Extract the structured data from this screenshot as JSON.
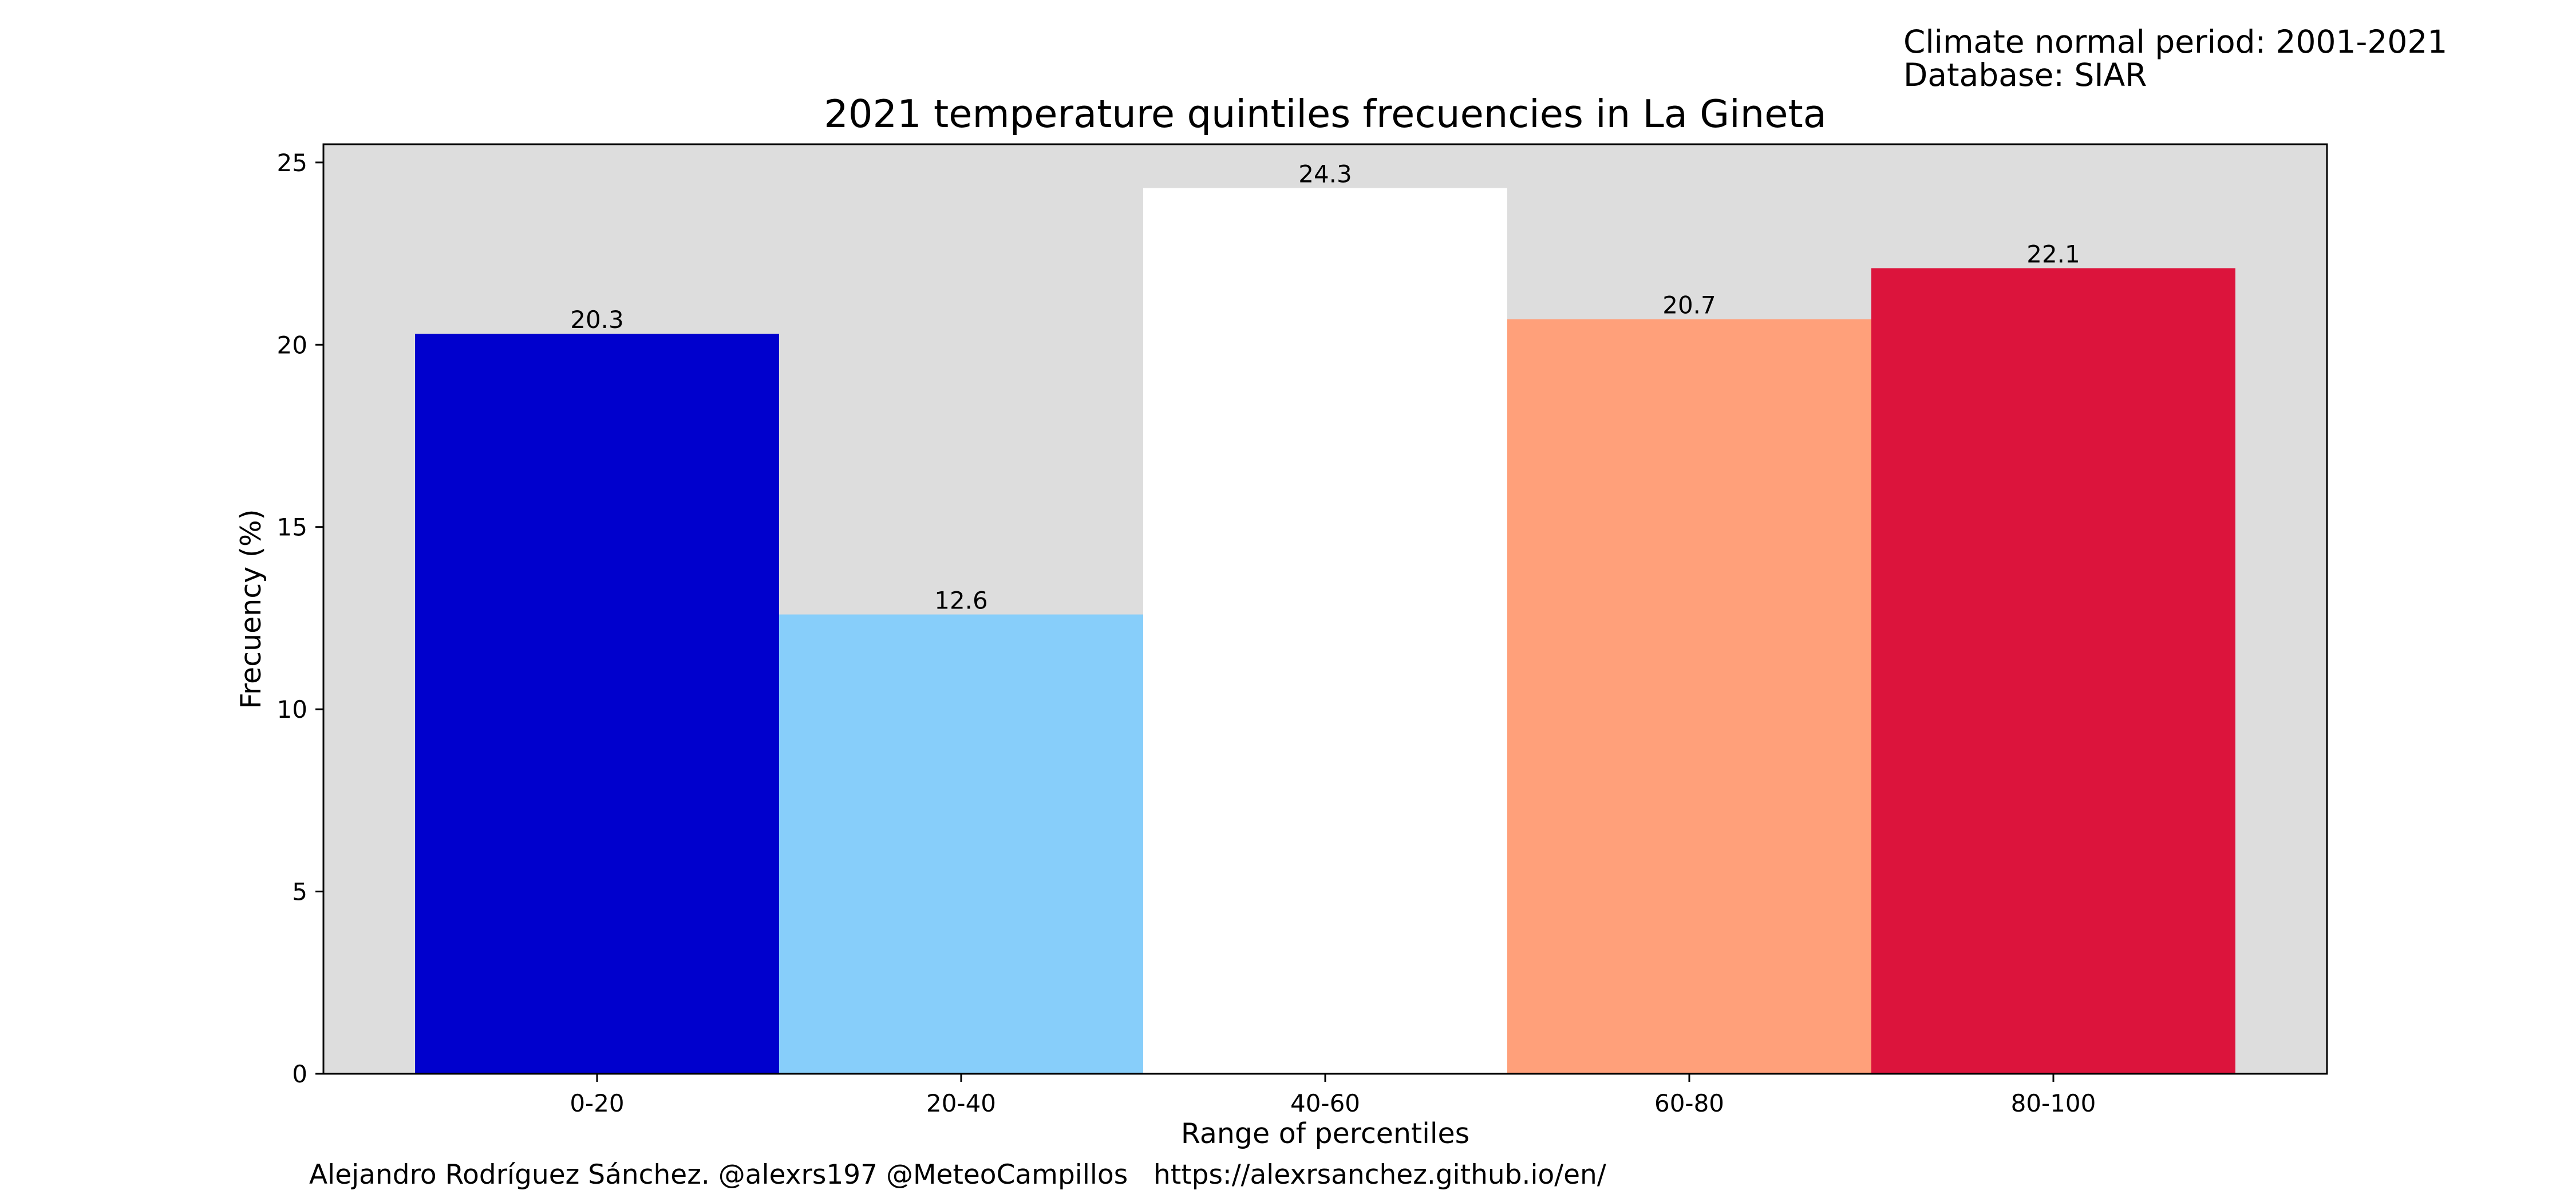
{
  "header": {
    "climate_period": "Climate normal period: 2001-2021",
    "database": "Database: SIAR"
  },
  "footer": {
    "credits": "Alejandro Rodríguez Sánchez. @alexrs197 @MeteoCampillos   https://alexrsanchez.github.io/en/"
  },
  "chart_data": {
    "type": "bar",
    "title": "2021 temperature quintiles frecuencies in La Gineta",
    "xlabel": "Range of percentiles",
    "ylabel": "Frecuency (%)",
    "categories": [
      "0-20",
      "20-40",
      "40-60",
      "60-80",
      "80-100"
    ],
    "values": [
      20.3,
      12.6,
      24.3,
      20.7,
      22.1
    ],
    "data_labels": [
      "20.3",
      "12.6",
      "24.3",
      "20.7",
      "22.1"
    ],
    "bar_colors": [
      "#0000cd",
      "#87cefa",
      "#ffffff",
      "#ffa07a",
      "#dc143c"
    ],
    "ylim": [
      0,
      25.5
    ],
    "yticks": [
      0,
      5,
      10,
      15,
      20,
      25
    ],
    "plot_background": "#dddddd",
    "grid": false,
    "legend": "none"
  }
}
